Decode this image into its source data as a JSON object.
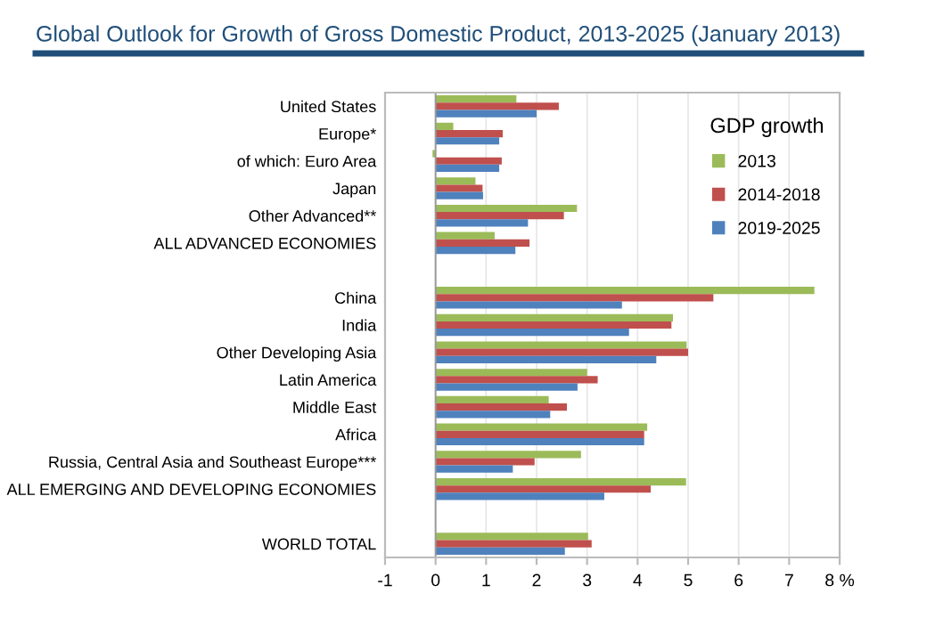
{
  "chart_data": {
    "type": "bar",
    "orientation": "horizontal",
    "title": "Global Outlook for Growth of Gross Domestic Product, 2013-2025 (January 2013)",
    "categories": [
      "United States",
      "Europe*",
      "of which: Euro Area",
      "Japan",
      "Other Advanced**",
      "ALL ADVANCED ECONOMIES",
      null,
      "China",
      "India",
      "Other Developing Asia",
      "Latin America",
      "Middle East",
      "Africa",
      "Russia, Central Asia and Southeast Europe***",
      "ALL EMERGING AND DEVELOPING ECONOMIES",
      null,
      "WORLD TOTAL"
    ],
    "series": [
      {
        "name": "2013",
        "color": "#9bbb59",
        "values": [
          1.6,
          0.35,
          -0.06,
          0.79,
          2.8,
          1.17,
          null,
          7.5,
          4.7,
          4.97,
          3.0,
          2.24,
          4.19,
          2.88,
          4.96,
          null,
          3.02
        ]
      },
      {
        "name": "2014-2018",
        "color": "#c0504d",
        "values": [
          2.44,
          1.33,
          1.31,
          0.93,
          2.54,
          1.86,
          null,
          5.5,
          4.67,
          5.0,
          3.21,
          2.6,
          4.13,
          1.96,
          4.26,
          null,
          3.09
        ]
      },
      {
        "name": "2019-2025",
        "color": "#4f81bd",
        "values": [
          2.0,
          1.26,
          1.26,
          0.94,
          1.83,
          1.58,
          null,
          3.69,
          3.83,
          4.37,
          2.81,
          2.27,
          4.13,
          1.53,
          3.34,
          null,
          2.56
        ]
      }
    ],
    "legend_title": "GDP growth",
    "legend": "top right",
    "grid": "x",
    "xlim": [
      -1,
      8
    ],
    "xticks": [
      -1,
      0,
      1,
      2,
      3,
      4,
      5,
      6,
      7,
      {
        "value": 8,
        "label": "8 %"
      }
    ]
  }
}
